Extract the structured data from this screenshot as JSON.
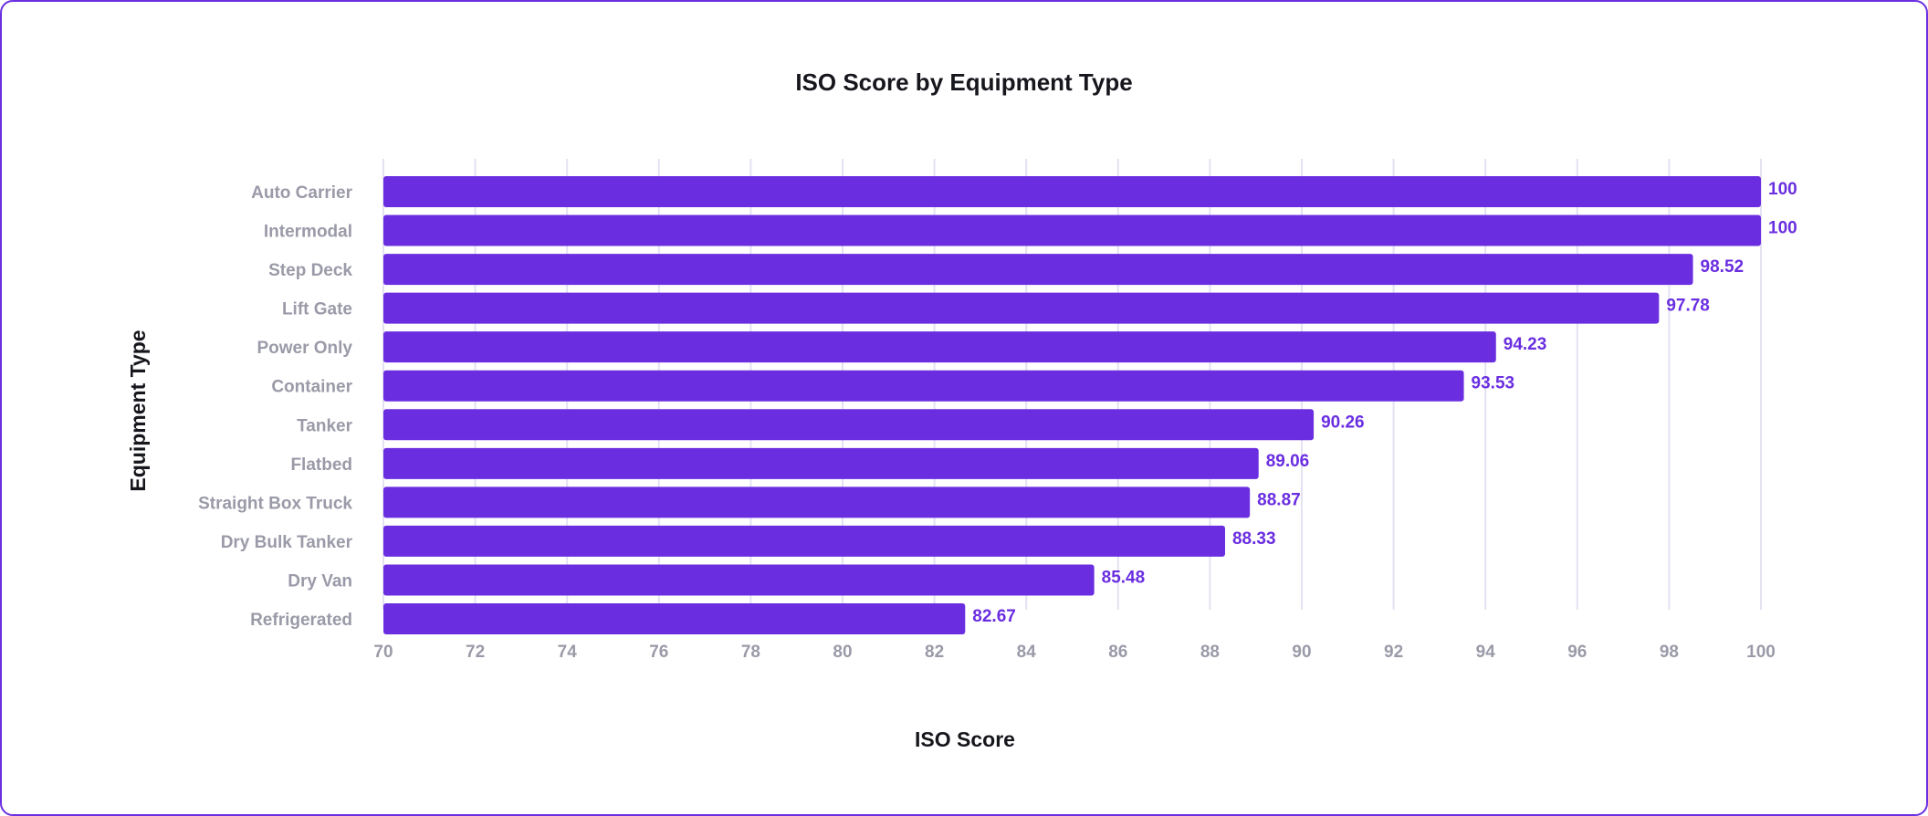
{
  "chart_data": {
    "type": "bar",
    "orientation": "horizontal",
    "title": "ISO Score by Equipment Type",
    "xlabel": "ISO Score",
    "ylabel": "Equipment Type",
    "xlim": [
      70,
      100
    ],
    "xticks": [
      70,
      72,
      74,
      76,
      78,
      80,
      82,
      84,
      86,
      88,
      90,
      92,
      94,
      96,
      98,
      100
    ],
    "grid": true,
    "bar_color": "#6a2ee0",
    "categories": [
      "Auto Carrier",
      "Intermodal",
      "Step Deck",
      "Lift Gate",
      "Power Only",
      "Container",
      "Tanker",
      "Flatbed",
      "Straight Box Truck",
      "Dry Bulk Tanker",
      "Dry Van",
      "Refrigerated"
    ],
    "values": [
      100,
      100,
      98.52,
      97.78,
      94.23,
      93.53,
      90.26,
      89.06,
      88.87,
      88.33,
      85.48,
      82.67
    ],
    "value_labels": [
      "100",
      "100",
      "98.52",
      "97.78",
      "94.23",
      "93.53",
      "90.26",
      "89.06",
      "88.87",
      "88.33",
      "85.48",
      "82.67"
    ]
  }
}
